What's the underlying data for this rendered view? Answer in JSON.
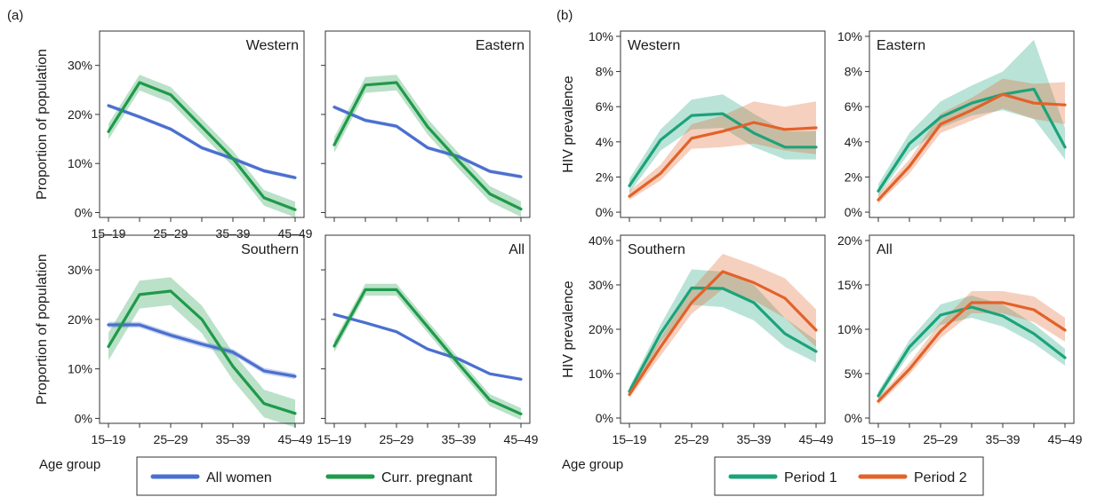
{
  "figure": {
    "panel_a_label": "(a)",
    "panel_b_label": "(b)",
    "xlabel_a": "Age group",
    "xlabel_b": "Age group"
  },
  "colors": {
    "all_women": "#4a6fcf",
    "curr_pregnant": "#1f9a4a",
    "period1": "#1ca37a",
    "period2": "#e2622a"
  },
  "legends": {
    "a": [
      {
        "label": "All women",
        "color": "#4a6fcf"
      },
      {
        "label": "Curr. pregnant",
        "color": "#1f9a4a"
      }
    ],
    "b": [
      {
        "label": "Period 1",
        "color": "#1ca37a"
      },
      {
        "label": "Period 2",
        "color": "#e2622a"
      }
    ]
  },
  "chart_data": [
    {
      "type": "line",
      "panel": "a",
      "title": "Western",
      "ylabel": "Proportion of population",
      "ylim": [
        -1,
        37
      ],
      "yticks": [
        0,
        10,
        20,
        30
      ],
      "yticklabels": [
        "0%",
        "10%",
        "20%",
        "30%"
      ],
      "x": [
        "15–19",
        "20–24",
        "25–29",
        "30–34",
        "35–39",
        "40–44",
        "45–49"
      ],
      "xticklabels": [
        "15–19",
        "25–29",
        "35–39",
        "45–49"
      ],
      "grid": false,
      "series": [
        {
          "name": "All women",
          "values": [
            21.8,
            19.5,
            17.0,
            13.2,
            11.0,
            8.5,
            7.1
          ],
          "band": 0.4
        },
        {
          "name": "Curr. pregnant",
          "values": [
            16.5,
            26.5,
            24.0,
            17.5,
            11.0,
            3.0,
            0.6
          ],
          "band": 1.6
        }
      ]
    },
    {
      "type": "line",
      "panel": "a",
      "title": "Eastern",
      "ylabel": "",
      "ylim": [
        -1,
        37
      ],
      "yticks": [
        0,
        10,
        20,
        30
      ],
      "yticklabels": [],
      "x": [
        "15–19",
        "20–24",
        "25–29",
        "30–34",
        "35–39",
        "40–44",
        "45–49"
      ],
      "xticklabels": [],
      "grid": false,
      "series": [
        {
          "name": "All women",
          "values": [
            21.5,
            18.8,
            17.6,
            13.2,
            11.4,
            8.4,
            7.3
          ],
          "band": 0.4
        },
        {
          "name": "Curr. pregnant",
          "values": [
            13.8,
            26.0,
            26.5,
            17.5,
            10.5,
            3.8,
            0.7
          ],
          "band": 1.6
        }
      ]
    },
    {
      "type": "line",
      "panel": "a",
      "title": "Southern",
      "ylabel": "Proportion of population",
      "ylim": [
        -1,
        37
      ],
      "yticks": [
        0,
        10,
        20,
        30
      ],
      "yticklabels": [
        "0%",
        "10%",
        "20%",
        "30%"
      ],
      "x": [
        "15–19",
        "20–24",
        "25–29",
        "30–34",
        "35–39",
        "40–44",
        "45–49"
      ],
      "xticklabels": [
        "15–19",
        "25–29",
        "35–39",
        "45–49"
      ],
      "grid": false,
      "series": [
        {
          "name": "All women",
          "values": [
            18.9,
            18.9,
            16.8,
            15.0,
            13.4,
            9.6,
            8.5
          ],
          "band": 0.6
        },
        {
          "name": "Curr. pregnant",
          "values": [
            14.5,
            25.0,
            25.7,
            20.0,
            10.5,
            3.0,
            1.0
          ],
          "band": 2.8
        }
      ]
    },
    {
      "type": "line",
      "panel": "a",
      "title": "All",
      "ylabel": "",
      "ylim": [
        -1,
        37
      ],
      "yticks": [
        0,
        10,
        20,
        30
      ],
      "yticklabels": [],
      "x": [
        "15–19",
        "20–24",
        "25–29",
        "30–34",
        "35–39",
        "40–44",
        "45–49"
      ],
      "xticklabels": [
        "15–19",
        "25–29",
        "35–39",
        "45–49"
      ],
      "grid": false,
      "series": [
        {
          "name": "All women",
          "values": [
            21.0,
            19.3,
            17.5,
            14.0,
            12.0,
            9.0,
            7.9
          ],
          "band": 0.3
        },
        {
          "name": "Curr. pregnant",
          "values": [
            14.6,
            26.0,
            26.0,
            18.5,
            11.0,
            3.7,
            0.9
          ],
          "band": 1.2
        }
      ]
    },
    {
      "type": "line",
      "panel": "b",
      "title": "Western",
      "ylabel": "HIV prevalence",
      "ylim": [
        -0.3,
        10.3
      ],
      "yticks": [
        0,
        2,
        4,
        6,
        8,
        10
      ],
      "yticklabels": [
        "0%",
        "2%",
        "4%",
        "6%",
        "8%",
        "10%"
      ],
      "x": [
        "15–19",
        "20–24",
        "25–29",
        "30–34",
        "35–39",
        "40–44",
        "45–49"
      ],
      "xticklabels": [],
      "grid": false,
      "series": [
        {
          "name": "Period 1",
          "values": [
            1.5,
            4.1,
            5.5,
            5.6,
            4.5,
            3.7,
            3.7
          ],
          "lower": [
            1.1,
            3.5,
            4.7,
            4.8,
            3.7,
            3.0,
            3.0
          ],
          "upper": [
            1.9,
            4.7,
            6.4,
            6.7,
            5.6,
            4.6,
            4.6
          ]
        },
        {
          "name": "Period 2",
          "values": [
            0.9,
            2.2,
            4.2,
            4.6,
            5.1,
            4.7,
            4.8
          ],
          "lower": [
            0.7,
            1.8,
            3.6,
            3.7,
            3.9,
            3.5,
            3.3
          ],
          "upper": [
            1.2,
            2.7,
            5.0,
            5.5,
            6.3,
            6.0,
            6.3
          ]
        }
      ]
    },
    {
      "type": "line",
      "panel": "b",
      "title": "Eastern",
      "ylabel": "",
      "ylim": [
        -0.3,
        10.3
      ],
      "yticks": [
        0,
        2,
        4,
        6,
        8,
        10
      ],
      "yticklabels": [
        "0%",
        "2%",
        "4%",
        "6%",
        "8%",
        "10%"
      ],
      "x": [
        "15–19",
        "20–24",
        "25–29",
        "30–34",
        "35–39",
        "40–44",
        "45–49"
      ],
      "xticklabels": [],
      "grid": false,
      "series": [
        {
          "name": "Period 1",
          "values": [
            1.2,
            3.9,
            5.4,
            6.2,
            6.7,
            7.0,
            3.7
          ],
          "lower": [
            0.9,
            3.4,
            4.8,
            5.5,
            5.8,
            5.3,
            3.0
          ],
          "upper": [
            1.6,
            4.5,
            6.3,
            7.2,
            8.0,
            9.8,
            4.8
          ]
        },
        {
          "name": "Period 2",
          "values": [
            0.7,
            2.6,
            5.0,
            5.8,
            6.7,
            6.2,
            6.1
          ],
          "lower": [
            0.5,
            2.2,
            4.5,
            5.2,
            5.9,
            5.3,
            5.0
          ],
          "upper": [
            1.0,
            3.0,
            5.6,
            6.5,
            7.6,
            7.3,
            7.4
          ]
        }
      ]
    },
    {
      "type": "line",
      "panel": "b",
      "title": "Southern",
      "ylabel": "HIV prevalence",
      "ylim": [
        -1.2,
        41.2
      ],
      "yticks": [
        0,
        10,
        20,
        30,
        40
      ],
      "yticklabels": [
        "0%",
        "10%",
        "20%",
        "30%",
        "40%"
      ],
      "x": [
        "15–19",
        "20–24",
        "25–29",
        "30–34",
        "35–39",
        "40–44",
        "45–49"
      ],
      "xticklabels": [
        "15–19",
        "25–29",
        "35–39",
        "45–49"
      ],
      "grid": false,
      "series": [
        {
          "name": "Period 1",
          "values": [
            6.0,
            19.0,
            29.3,
            29.2,
            26.0,
            19.0,
            15.0
          ],
          "lower": [
            5.0,
            17.0,
            25.5,
            25.0,
            22.0,
            16.0,
            12.5
          ],
          "upper": [
            7.0,
            21.0,
            33.5,
            33.0,
            30.0,
            22.5,
            17.5
          ]
        },
        {
          "name": "Period 2",
          "values": [
            5.3,
            16.0,
            26.0,
            33.0,
            30.5,
            27.0,
            19.8
          ],
          "lower": [
            4.5,
            14.0,
            23.5,
            29.0,
            26.5,
            22.5,
            16.0
          ],
          "upper": [
            6.2,
            18.0,
            29.0,
            37.0,
            34.5,
            31.5,
            24.5
          ]
        }
      ]
    },
    {
      "type": "line",
      "panel": "b",
      "title": "All",
      "ylabel": "",
      "ylim": [
        -0.6,
        20.6
      ],
      "yticks": [
        0,
        5,
        10,
        15,
        20
      ],
      "yticklabels": [
        "0%",
        "5%",
        "10%",
        "15%",
        "20%"
      ],
      "x": [
        "15–19",
        "20–24",
        "25–29",
        "30–34",
        "35–39",
        "40–44",
        "45–49"
      ],
      "xticklabels": [
        "15–19",
        "25–29",
        "35–39",
        "45–49"
      ],
      "grid": false,
      "series": [
        {
          "name": "Period 1",
          "values": [
            2.5,
            8.0,
            11.6,
            12.5,
            11.5,
            9.5,
            6.8
          ],
          "lower": [
            2.0,
            7.2,
            10.5,
            11.3,
            10.3,
            8.4,
            5.9
          ],
          "upper": [
            3.0,
            8.8,
            12.8,
            13.8,
            12.8,
            10.6,
            7.8
          ]
        },
        {
          "name": "Period 2",
          "values": [
            1.9,
            5.5,
            9.8,
            13.0,
            13.0,
            12.2,
            9.9
          ],
          "lower": [
            1.5,
            4.9,
            9.0,
            11.8,
            11.8,
            10.8,
            8.6
          ],
          "upper": [
            2.3,
            6.2,
            10.8,
            14.3,
            14.3,
            13.7,
            11.3
          ]
        }
      ]
    }
  ]
}
